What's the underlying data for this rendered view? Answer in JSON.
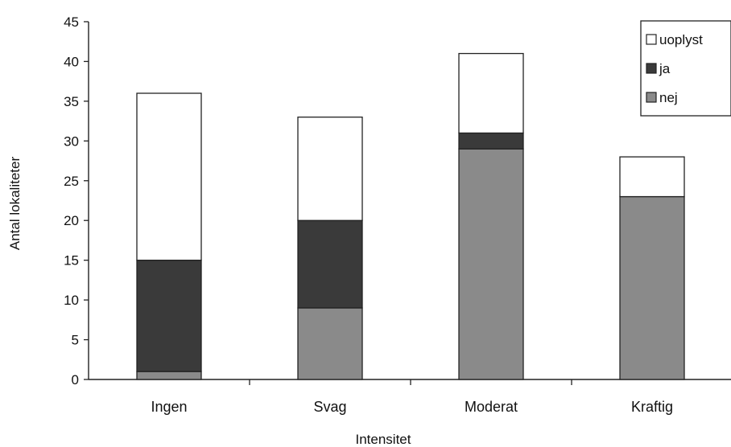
{
  "chart_data": {
    "type": "bar",
    "stacked": true,
    "categories": [
      "Ingen",
      "Svag",
      "Moderat",
      "Kraftig"
    ],
    "series": [
      {
        "name": "nej",
        "values": [
          1,
          9,
          29,
          23
        ],
        "color": "#8a8a8a"
      },
      {
        "name": "ja",
        "values": [
          14,
          11,
          2,
          0
        ],
        "color": "#3a3a3a"
      },
      {
        "name": "uoplyst",
        "values": [
          21,
          13,
          10,
          5
        ],
        "color": "#ffffff"
      }
    ],
    "xlabel": "Intensitet",
    "ylabel": "Antal lokaliteter",
    "ylim": [
      0,
      45
    ],
    "yticks": [
      0,
      5,
      10,
      15,
      20,
      25,
      30,
      35,
      40,
      45
    ],
    "grid": false,
    "legend_position": "top-right",
    "legend_order": [
      "uoplyst",
      "ja",
      "nej"
    ]
  }
}
